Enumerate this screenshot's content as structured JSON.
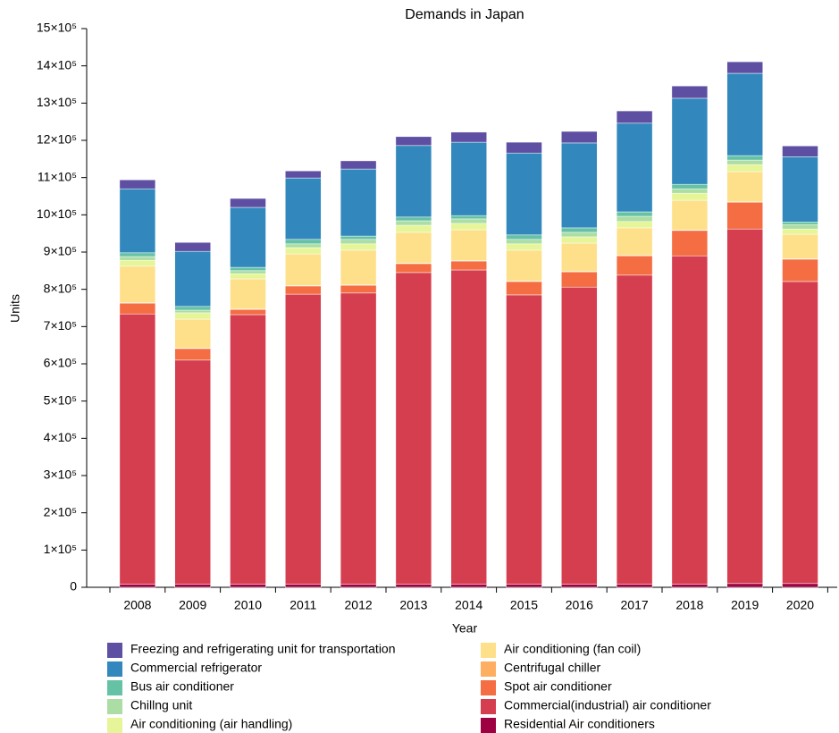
{
  "chart_data": {
    "type": "stacked_bar",
    "title": "Demands in Japan",
    "x_label": "Year",
    "y_label": "Units",
    "categories": [
      "2008",
      "2009",
      "2010",
      "2011",
      "2012",
      "2013",
      "2014",
      "2015",
      "2016",
      "2017",
      "2018",
      "2019",
      "2020"
    ],
    "ylim": [
      0,
      1500000
    ],
    "yticks": [
      0,
      {
        "value": 100000,
        "label": "1×10⁵"
      },
      {
        "value": 200000,
        "label": "2×10⁵"
      },
      {
        "value": 300000,
        "label": "3×10⁵"
      },
      {
        "value": 400000,
        "label": "4×10⁵"
      },
      {
        "value": 500000,
        "label": "5×10⁵"
      },
      {
        "value": 600000,
        "label": "6×10⁵"
      },
      {
        "value": 700000,
        "label": "7×10⁵"
      },
      {
        "value": 800000,
        "label": "8×10⁵"
      },
      {
        "value": 900000,
        "label": "9×10⁵"
      },
      {
        "value": 1000000,
        "label": "10×10⁵"
      },
      {
        "value": 1100000,
        "label": "11×10⁵"
      },
      {
        "value": 1200000,
        "label": "12×10⁵"
      },
      {
        "value": 1300000,
        "label": "13×10⁵"
      },
      {
        "value": 1400000,
        "label": "14×10⁵"
      },
      {
        "value": 1500000,
        "label": "15×10⁵"
      }
    ],
    "series": [
      {
        "name": "Residential Air conditioners",
        "color": "#9e0142",
        "values": [
          8000,
          8000,
          8000,
          8000,
          8000,
          8000,
          8000,
          8000,
          8000,
          8000,
          8000,
          10000,
          10000
        ]
      },
      {
        "name": "Commercial(industrial) air conditioner",
        "color": "#d53e4f",
        "values": [
          726000,
          602000,
          724000,
          779000,
          782000,
          837000,
          844000,
          777000,
          798000,
          830000,
          882000,
          952000,
          811000
        ]
      },
      {
        "name": "Spot air conditioner",
        "color": "#f46d43",
        "values": [
          29000,
          31000,
          14000,
          22000,
          21000,
          24000,
          24000,
          36000,
          41000,
          52000,
          68000,
          72000,
          60000
        ]
      },
      {
        "name": "Centrifugal chiller",
        "color": "#fdae61",
        "values": [
          1000,
          1000,
          1000,
          1000,
          1000,
          1000,
          1000,
          1000,
          1000,
          1000,
          1000,
          1000,
          1000
        ]
      },
      {
        "name": "Air conditioning (fan coil)",
        "color": "#fee08b",
        "values": [
          98000,
          78000,
          81000,
          85000,
          93000,
          83000,
          83000,
          83000,
          76000,
          74000,
          80000,
          81000,
          66000
        ]
      },
      {
        "name": "Air conditioning (air handling)",
        "color": "#e6f598",
        "values": [
          16000,
          17000,
          14000,
          17000,
          17000,
          19000,
          17000,
          17000,
          17000,
          17000,
          19000,
          19000,
          14000
        ]
      },
      {
        "name": "Chillng unit",
        "color": "#abdda4",
        "values": [
          10000,
          7000,
          8000,
          10000,
          12000,
          12000,
          12000,
          12000,
          12000,
          14000,
          12000,
          12000,
          12000
        ]
      },
      {
        "name": "Bus air conditioner",
        "color": "#66c2a5",
        "values": [
          10000,
          10000,
          9000,
          12000,
          9000,
          10000,
          9000,
          12000,
          12000,
          12000,
          12000,
          12000,
          7000
        ]
      },
      {
        "name": "Commercial refrigerator",
        "color": "#3288bd",
        "values": [
          172000,
          148000,
          161000,
          165000,
          180000,
          192000,
          197000,
          220000,
          228000,
          238000,
          231000,
          221000,
          175000
        ]
      },
      {
        "name": "Freezing and refrigerating unit for transportation",
        "color": "#5e4fa2",
        "values": [
          24000,
          24000,
          24000,
          19000,
          22000,
          24000,
          27000,
          29000,
          31000,
          33000,
          33000,
          31000,
          29000
        ]
      }
    ]
  }
}
